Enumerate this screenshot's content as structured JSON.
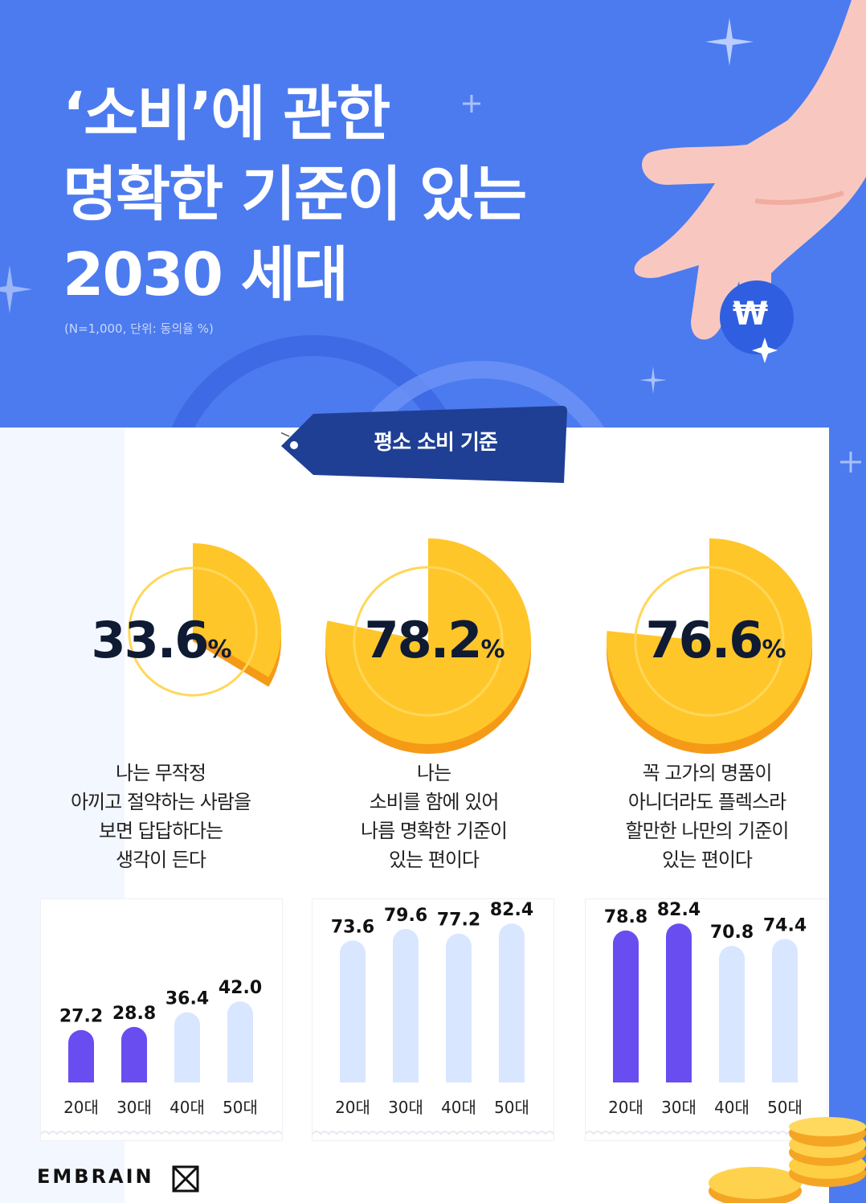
{
  "colors": {
    "background": "#4c7bef",
    "highlight_bar": "#6a4df0",
    "normal_bar": "#d9e6ff",
    "coin": "#ffc629",
    "coin_edge": "#f59a16",
    "tag": "#1e3f94"
  },
  "header": {
    "title": "‘소비’에 관한\n명확한 기준이 있는\n2030 세대",
    "subtitle": "(N=1,000, 단위: 동의율 %)",
    "coin_symbol": "₩"
  },
  "tag": {
    "label": "평소 소비 기준"
  },
  "chart_data": [
    {
      "type": "bar",
      "headline_value": 33.6,
      "headline_text": "33.6",
      "unit": "%",
      "statement": "나는 무작정\n아끼고 절약하는 사람을\n보면 답답하다는\n생각이 든다",
      "categories": [
        "20대",
        "30대",
        "40대",
        "50대"
      ],
      "values": [
        27.2,
        28.8,
        36.4,
        42.0
      ],
      "value_labels": [
        "27.2",
        "28.8",
        "36.4",
        "42.0"
      ],
      "highlighted": [
        true,
        true,
        false,
        false
      ]
    },
    {
      "type": "bar",
      "headline_value": 78.2,
      "headline_text": "78.2",
      "unit": "%",
      "statement": "나는\n소비를 함에 있어\n나름 명확한 기준이\n있는 편이다",
      "categories": [
        "20대",
        "30대",
        "40대",
        "50대"
      ],
      "values": [
        73.6,
        79.6,
        77.2,
        82.4
      ],
      "value_labels": [
        "73.6",
        "79.6",
        "77.2",
        "82.4"
      ],
      "highlighted": [
        false,
        false,
        false,
        false
      ]
    },
    {
      "type": "bar",
      "headline_value": 76.6,
      "headline_text": "76.6",
      "unit": "%",
      "statement": "꼭 고가의 명품이\n아니더라도 플렉스라\n할만한 나만의 기준이\n있는 편이다",
      "categories": [
        "20대",
        "30대",
        "40대",
        "50대"
      ],
      "values": [
        78.8,
        82.4,
        70.8,
        74.4
      ],
      "value_labels": [
        "78.8",
        "82.4",
        "70.8",
        "74.4"
      ],
      "highlighted": [
        true,
        true,
        false,
        false
      ]
    }
  ],
  "footer": {
    "brand": "EMBRAIN"
  }
}
